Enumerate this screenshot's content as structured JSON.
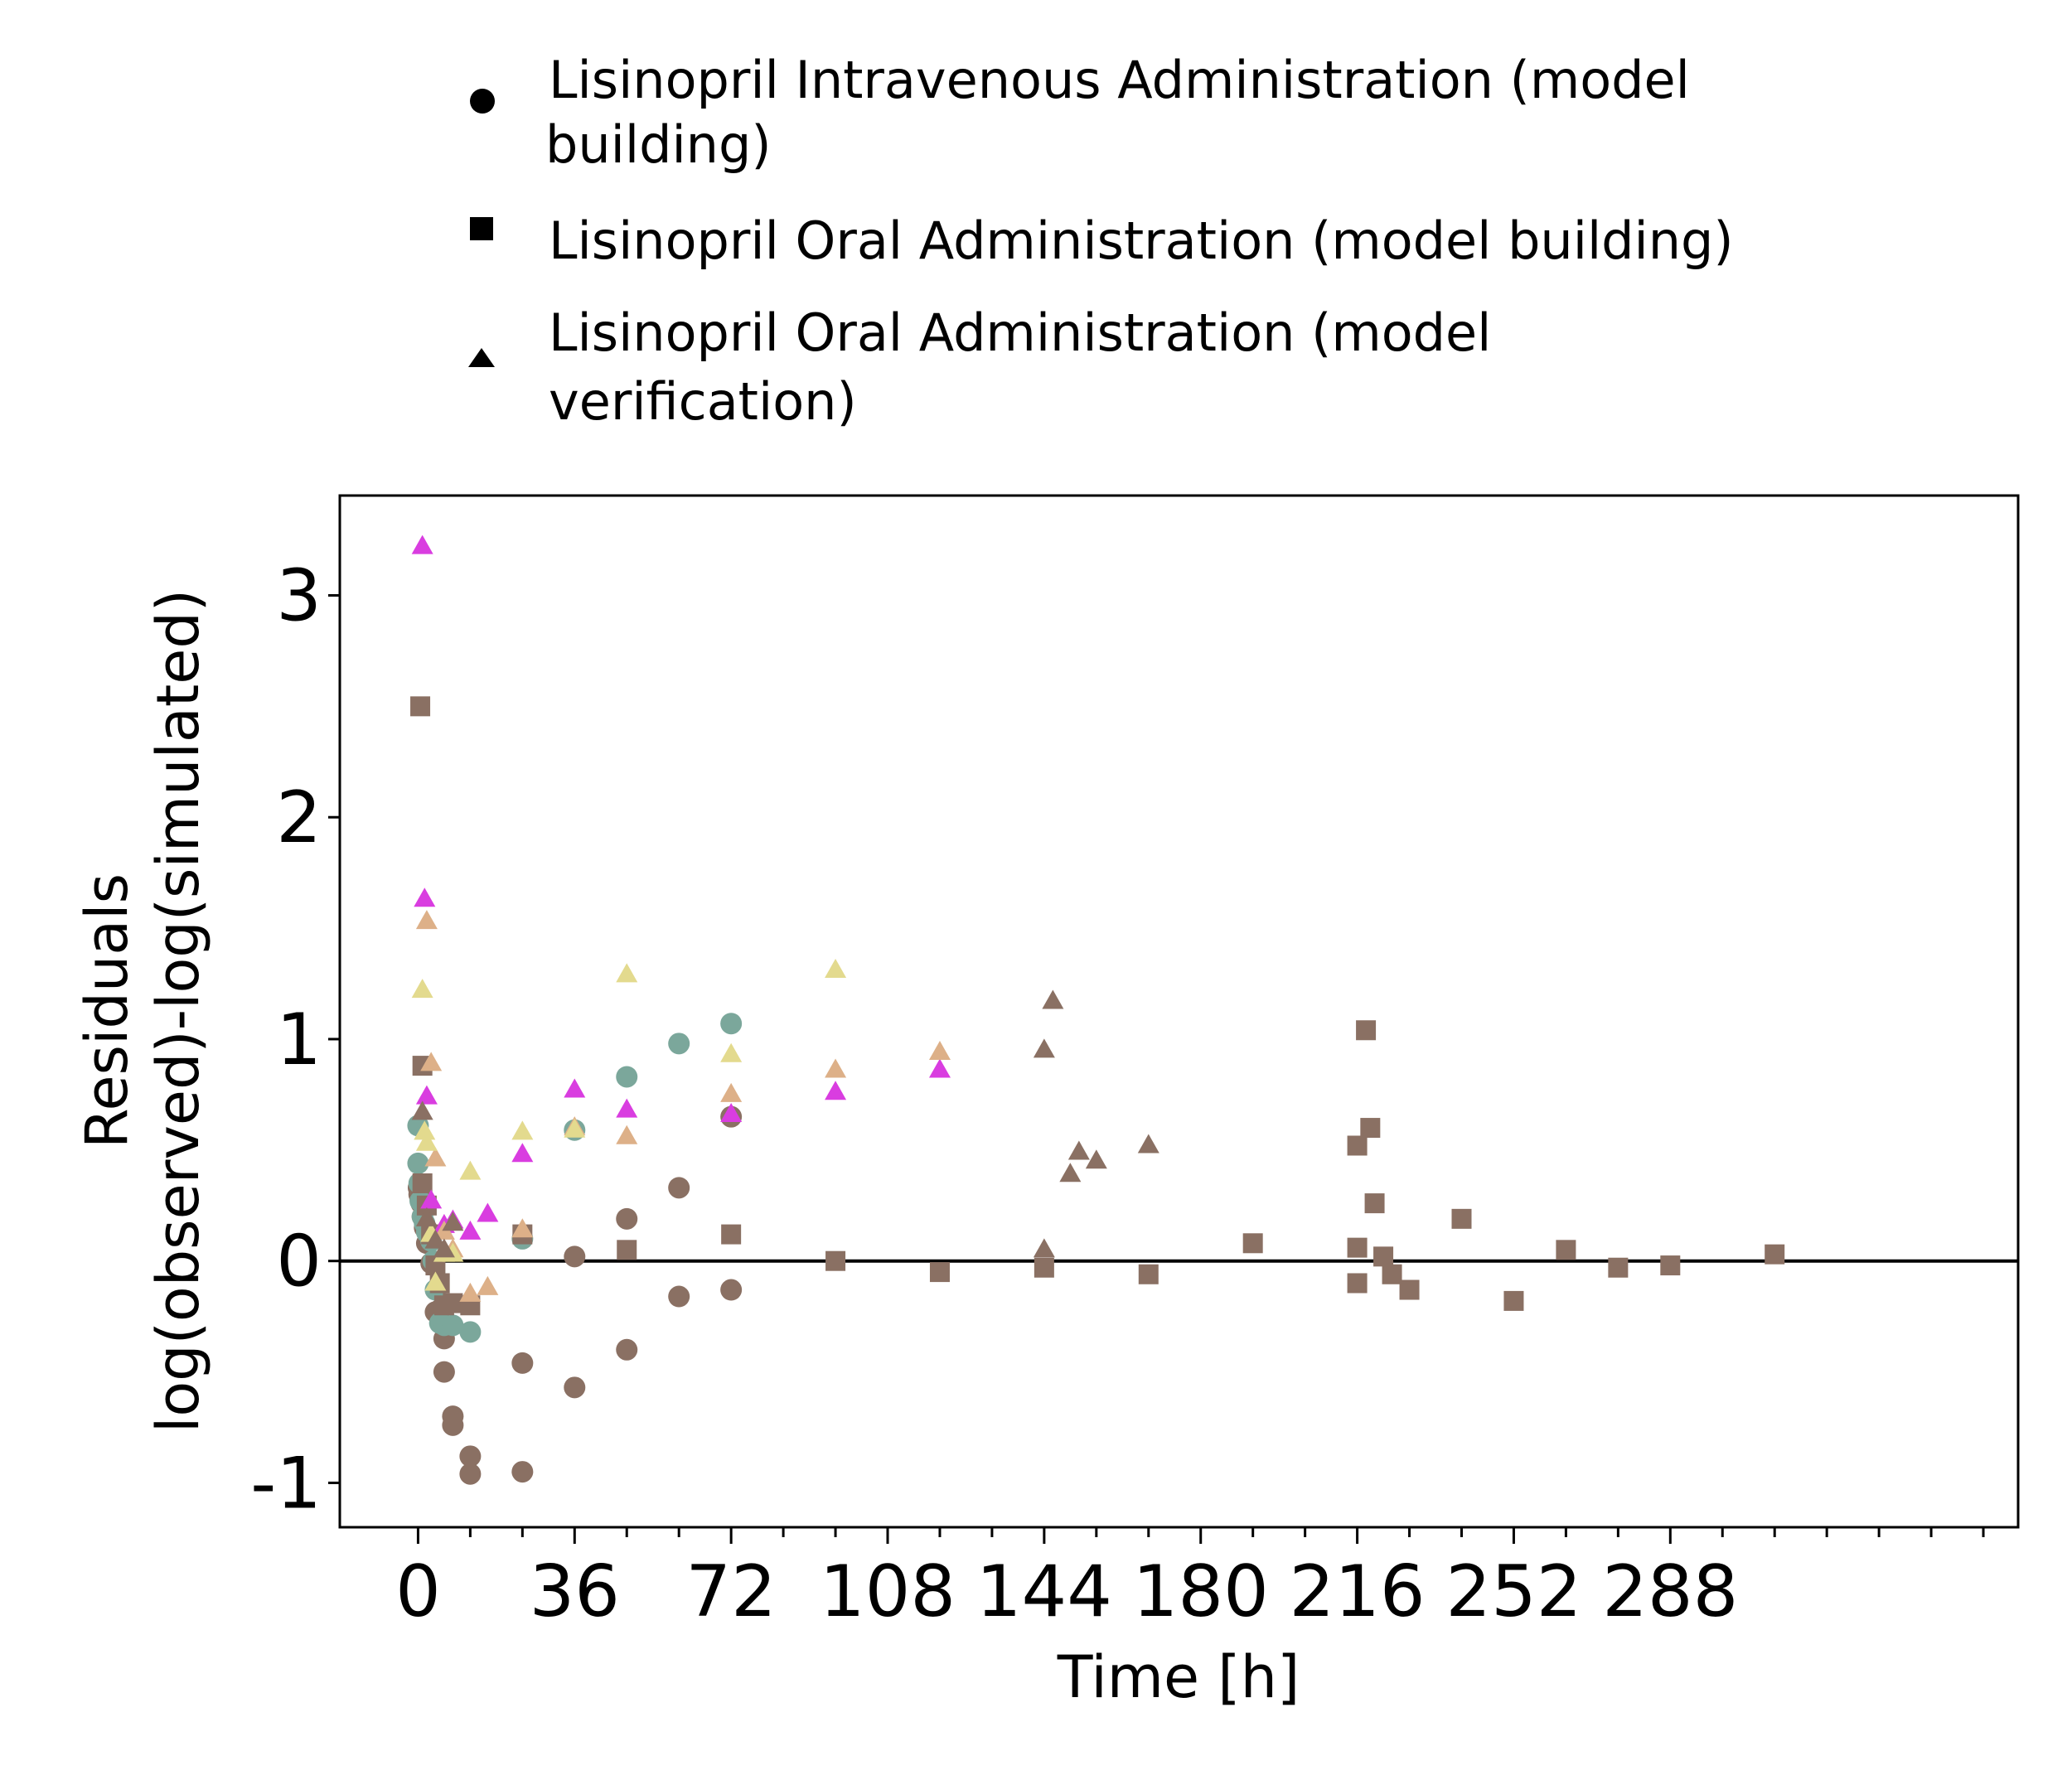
{
  "chart_data": {
    "type": "scatter",
    "xlabel": "Time [h]",
    "ylabel": [
      "Residuals",
      "log(observed)-log(simulated)"
    ],
    "xlim": [
      -18,
      368
    ],
    "ylim": [
      -1.2,
      3.45
    ],
    "xticks": [
      0,
      36,
      72,
      108,
      144,
      180,
      216,
      252,
      288
    ],
    "xticks_minor_step": 12,
    "yticks": [
      -1,
      0,
      1,
      2,
      3
    ],
    "reference_line_y": 0,
    "grid": false,
    "legend": {
      "placement": "top",
      "entries": [
        {
          "shape": "circle",
          "lines": [
            "Lisinopril Intravenous Administration (model",
            "building)"
          ]
        },
        {
          "shape": "square",
          "lines": [
            "Lisinopril Oral Administration (model building)"
          ]
        },
        {
          "shape": "triangle",
          "lines": [
            "Lisinopril Oral Administration (model",
            "verification)"
          ]
        }
      ]
    },
    "colors": {
      "brown": "#8a7063",
      "teal": "#7ba79b",
      "magenta": "#d93de0",
      "tan": "#ddb088",
      "khaki": "#e3da8e"
    },
    "series": [
      {
        "shape": "circle",
        "color": "#8a7063",
        "points": [
          [
            0.1,
            0.33
          ],
          [
            0.25,
            0.3
          ],
          [
            0.5,
            0.28
          ],
          [
            0.75,
            0.26
          ],
          [
            1,
            0.2
          ],
          [
            1.5,
            0.15
          ],
          [
            2,
            0.08
          ],
          [
            3,
            -0.01
          ],
          [
            4,
            -0.23
          ],
          [
            5,
            -0.22
          ],
          [
            6,
            -0.35
          ],
          [
            6,
            -0.5
          ],
          [
            8,
            -0.7
          ],
          [
            8,
            -0.74
          ],
          [
            12,
            -0.88
          ],
          [
            12,
            -0.96
          ],
          [
            24,
            -0.46
          ],
          [
            24,
            -0.95
          ],
          [
            36,
            -0.57
          ],
          [
            36,
            0.02
          ],
          [
            48,
            -0.4
          ],
          [
            48,
            0.19
          ],
          [
            60,
            -0.16
          ],
          [
            60,
            0.33
          ],
          [
            72,
            -0.13
          ],
          [
            72,
            0.65
          ]
        ]
      },
      {
        "shape": "circle",
        "color": "#7ba79b",
        "points": [
          [
            0,
            0.61
          ],
          [
            0,
            0.44
          ],
          [
            0.25,
            0.35
          ],
          [
            0.5,
            0.27
          ],
          [
            1,
            0.2
          ],
          [
            1.5,
            0.17
          ],
          [
            2,
            0.13
          ],
          [
            3,
            0.09
          ],
          [
            3.5,
            0.0
          ],
          [
            4,
            -0.13
          ],
          [
            5,
            -0.28
          ],
          [
            6,
            -0.29
          ],
          [
            8,
            -0.29
          ],
          [
            12,
            -0.32
          ],
          [
            24,
            0.1
          ],
          [
            36,
            0.59
          ],
          [
            48,
            0.83
          ],
          [
            60,
            0.98
          ],
          [
            72,
            1.07
          ]
        ]
      },
      {
        "shape": "square",
        "color": "#8a7063",
        "points": [
          [
            0.5,
            2.5
          ],
          [
            1,
            0.88
          ],
          [
            1,
            0.35
          ],
          [
            2,
            0.25
          ],
          [
            3,
            0.12
          ],
          [
            4,
            -0.02
          ],
          [
            5,
            -0.1
          ],
          [
            6,
            -0.2
          ],
          [
            8,
            -0.19
          ],
          [
            12,
            -0.2
          ],
          [
            24,
            0.12
          ],
          [
            48,
            0.05
          ],
          [
            72,
            0.12
          ],
          [
            96,
            0.0
          ],
          [
            120,
            -0.05
          ],
          [
            144,
            -0.03
          ],
          [
            168,
            -0.06
          ],
          [
            192,
            0.08
          ],
          [
            216,
            0.52
          ],
          [
            216,
            0.06
          ],
          [
            216,
            -0.1
          ],
          [
            218,
            1.04
          ],
          [
            219,
            0.6
          ],
          [
            220,
            0.26
          ],
          [
            222,
            0.02
          ],
          [
            224,
            -0.06
          ],
          [
            228,
            -0.13
          ],
          [
            240,
            0.19
          ],
          [
            252,
            -0.18
          ],
          [
            264,
            0.05
          ],
          [
            276,
            -0.03
          ],
          [
            288,
            -0.02
          ],
          [
            312,
            0.03
          ]
        ]
      },
      {
        "shape": "triangle",
        "color": "#d93de0",
        "points": [
          [
            1,
            3.22
          ],
          [
            1.5,
            1.63
          ],
          [
            2,
            0.74
          ],
          [
            3,
            0.27
          ],
          [
            6,
            0.16
          ],
          [
            8,
            0.18
          ],
          [
            12,
            0.13
          ],
          [
            16,
            0.21
          ],
          [
            24,
            0.48
          ],
          [
            36,
            0.77
          ],
          [
            48,
            0.68
          ],
          [
            72,
            0.66
          ],
          [
            96,
            0.76
          ],
          [
            120,
            0.86
          ]
        ]
      },
      {
        "shape": "triangle",
        "color": "#ddb088",
        "points": [
          [
            2,
            1.53
          ],
          [
            3,
            0.89
          ],
          [
            4,
            0.46
          ],
          [
            6,
            0.13
          ],
          [
            8,
            0.05
          ],
          [
            12,
            -0.15
          ],
          [
            16,
            -0.12
          ],
          [
            24,
            0.14
          ],
          [
            36,
            0.6
          ],
          [
            48,
            0.56
          ],
          [
            72,
            0.75
          ],
          [
            96,
            0.86
          ],
          [
            120,
            0.94
          ]
        ]
      },
      {
        "shape": "triangle",
        "color": "#e3da8e",
        "points": [
          [
            1,
            1.22
          ],
          [
            1.5,
            0.58
          ],
          [
            2,
            0.53
          ],
          [
            3,
            0.12
          ],
          [
            4,
            -0.1
          ],
          [
            6,
            0.03
          ],
          [
            8,
            0.03
          ],
          [
            12,
            0.4
          ],
          [
            24,
            0.58
          ],
          [
            36,
            0.59
          ],
          [
            48,
            1.29
          ],
          [
            72,
            0.93
          ],
          [
            96,
            1.31
          ]
        ]
      },
      {
        "shape": "triangle",
        "color": "#8a7063",
        "points": [
          [
            1,
            0.67
          ],
          [
            2,
            0.19
          ],
          [
            4,
            0.09
          ],
          [
            6,
            0.05
          ],
          [
            8,
            0.17
          ],
          [
            144,
            0.05
          ],
          [
            144,
            0.95
          ],
          [
            146,
            1.17
          ],
          [
            150,
            0.39
          ],
          [
            152,
            0.49
          ],
          [
            156,
            0.45
          ],
          [
            168,
            0.52
          ]
        ]
      }
    ]
  }
}
